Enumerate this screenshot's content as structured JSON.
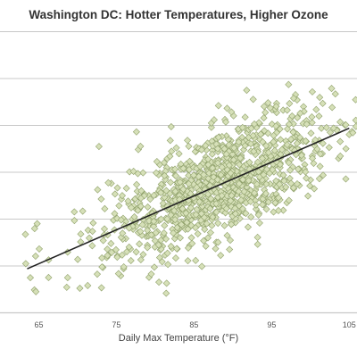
{
  "chart_data": {
    "type": "scatter",
    "title": "Washington DC: Hotter Temperatures, Higher Ozone",
    "xlabel": "Daily Max Temperature (°F)",
    "ylabel": "",
    "xlim": [
      60,
      106
    ],
    "ylim": [
      0,
      6
    ],
    "x_ticks": [
      65,
      75,
      85,
      95,
      105
    ],
    "y_gridlines": [
      0,
      1,
      2,
      3,
      4,
      5,
      6
    ],
    "y_tick_labels_shown": false,
    "grid": "horizontal",
    "legend": "none",
    "marker": "diamond",
    "colors": {
      "marker_fill": "#d6e0b8",
      "marker_edge": "#8fa06a",
      "trendline": "#222222",
      "grid": "#c8c8c8"
    },
    "trendline": {
      "x": [
        63.5,
        105
      ],
      "y": [
        0.93,
        3.93
      ]
    },
    "point_cloud": {
      "count": 1100,
      "x_range": [
        63,
        106
      ],
      "center_x": 88,
      "sd_x": 6.5,
      "residual_sd": 0.6
    }
  }
}
